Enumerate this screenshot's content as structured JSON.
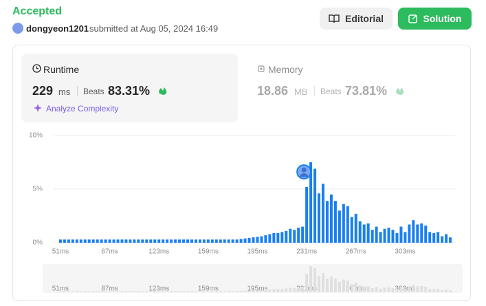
{
  "header": {
    "status": "Accepted",
    "user": "dongyeon1201",
    "submitted": "submitted at Aug 05, 2024 16:49",
    "buttons": [
      "Editorial",
      "Solution"
    ]
  },
  "runtime": {
    "title": "Runtime",
    "value": 229,
    "unit": "ms",
    "beats_label": "Beats",
    "beats": "83.31%",
    "analyze": "Analyze Complexity"
  },
  "memory": {
    "title": "Memory",
    "value": 18.86,
    "unit": "MB",
    "beats_label": "Beats",
    "beats": "73.81%"
  },
  "chart_data": {
    "type": "bar",
    "color": "#1a7ff0",
    "x": [
      51,
      54,
      57,
      60,
      63,
      66,
      69,
      72,
      75,
      78,
      81,
      84,
      87,
      90,
      93,
      96,
      99,
      102,
      105,
      108,
      111,
      114,
      117,
      120,
      123,
      126,
      129,
      132,
      135,
      138,
      141,
      144,
      147,
      150,
      153,
      156,
      159,
      162,
      165,
      168,
      171,
      174,
      177,
      180,
      183,
      186,
      189,
      192,
      195,
      198,
      201,
      204,
      207,
      210,
      213,
      216,
      219,
      222,
      225,
      228,
      231,
      234,
      237,
      240,
      243,
      246,
      249,
      252,
      255,
      258,
      261,
      264,
      267,
      270,
      273,
      276,
      279,
      282,
      285,
      288,
      291,
      294,
      297,
      300,
      303,
      306,
      309,
      312,
      315,
      318,
      321,
      324,
      327,
      330,
      333,
      336
    ],
    "values": [
      0.3,
      0.3,
      0.3,
      0.3,
      0.3,
      0.3,
      0.3,
      0.3,
      0.3,
      0.3,
      0.3,
      0.3,
      0.3,
      0.3,
      0.3,
      0.3,
      0.3,
      0.3,
      0.3,
      0.3,
      0.3,
      0.3,
      0.3,
      0.3,
      0.3,
      0.3,
      0.3,
      0.3,
      0.3,
      0.3,
      0.3,
      0.3,
      0.3,
      0.3,
      0.3,
      0.3,
      0.3,
      0.3,
      0.3,
      0.3,
      0.3,
      0.3,
      0.3,
      0.3,
      0.35,
      0.4,
      0.45,
      0.5,
      0.55,
      0.6,
      0.7,
      0.8,
      0.9,
      0.9,
      1.0,
      1.1,
      1.3,
      1.2,
      1.4,
      1.5,
      5.2,
      7.5,
      6.9,
      4.6,
      5.5,
      3.9,
      4.5,
      3.9,
      3.0,
      3.6,
      3.4,
      2.4,
      2.7,
      2.0,
      1.7,
      1.8,
      1.2,
      1.5,
      1.0,
      1.3,
      1.4,
      1.2,
      0.9,
      1.5,
      1.0,
      1.7,
      2.1,
      1.7,
      1.8,
      1.6,
      1.0,
      0.9,
      1.0,
      0.6,
      0.8,
      0.5
    ],
    "xlim": [
      46,
      342
    ],
    "xticks": [
      {
        "value": 51,
        "label": "51ms"
      },
      {
        "value": 87,
        "label": "87ms"
      },
      {
        "value": 123,
        "label": "123ms"
      },
      {
        "value": 159,
        "label": "159ms"
      },
      {
        "value": 195,
        "label": "195ms"
      },
      {
        "value": 231,
        "label": "231ms"
      },
      {
        "value": 267,
        "label": "267ms"
      },
      {
        "value": 303,
        "label": "303ms"
      }
    ],
    "ylim": [
      0,
      10
    ],
    "yticks": [
      {
        "value": 0,
        "label": "0%"
      },
      {
        "value": 5,
        "label": "5%"
      },
      {
        "value": 10,
        "label": "10%"
      }
    ],
    "grid": true
  }
}
